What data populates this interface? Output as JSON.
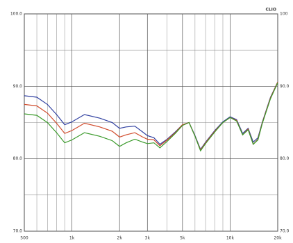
{
  "chart_data": {
    "type": "line",
    "label": "CLIO",
    "log_x": true,
    "grid": true,
    "x": [
      500,
      600,
      700,
      800,
      900,
      1000,
      1200,
      1500,
      1800,
      2000,
      2200,
      2500,
      2800,
      3000,
      3300,
      3600,
      4000,
      4500,
      5000,
      5500,
      6000,
      6500,
      7000,
      8000,
      9000,
      10000,
      11000,
      12000,
      13000,
      14000,
      15000,
      16000,
      18000,
      20000
    ],
    "series": [
      {
        "color": "#2f3fa0",
        "values": [
          88.7,
          88.5,
          87.5,
          86.1,
          84.7,
          85.1,
          86.1,
          85.6,
          85.0,
          84.2,
          84.4,
          84.5,
          83.7,
          83.2,
          82.9,
          82.0,
          82.7,
          83.7,
          84.7,
          85.0,
          83.2,
          81.3,
          82.3,
          83.9,
          85.1,
          85.8,
          85.4,
          83.5,
          84.2,
          82.3,
          82.9,
          85.1,
          88.5,
          90.6
        ]
      },
      {
        "color": "#d04a2a",
        "values": [
          87.5,
          87.3,
          86.3,
          84.9,
          83.5,
          83.9,
          84.9,
          84.4,
          83.8,
          83.0,
          83.3,
          83.6,
          83.0,
          82.7,
          82.6,
          81.8,
          82.6,
          83.6,
          84.7,
          85.0,
          83.1,
          81.2,
          82.2,
          83.8,
          85.0,
          85.7,
          85.3,
          83.3,
          84.1,
          82.0,
          82.7,
          85.0,
          88.4,
          90.6
        ]
      },
      {
        "color": "#3a9a2a",
        "values": [
          86.2,
          86.0,
          85.0,
          83.6,
          82.2,
          82.6,
          83.6,
          83.1,
          82.5,
          81.7,
          82.2,
          82.7,
          82.3,
          82.1,
          82.2,
          81.5,
          82.4,
          83.5,
          84.6,
          85.0,
          83.1,
          81.1,
          82.1,
          83.7,
          85.0,
          85.7,
          85.2,
          83.3,
          84.0,
          82.0,
          82.6,
          84.9,
          88.3,
          90.5
        ]
      }
    ],
    "xlim": [
      500,
      20000
    ],
    "xticks": [
      {
        "value": 500,
        "label": "500"
      },
      {
        "value": 1000,
        "label": "1k"
      },
      {
        "value": 2000,
        "label": "2k"
      },
      {
        "value": 3000,
        "label": "3k"
      },
      {
        "value": 5000,
        "label": "5k"
      },
      {
        "value": 10000,
        "label": "10k"
      },
      {
        "value": 20000,
        "label": "20k"
      }
    ],
    "x_minor_grid": [
      600,
      700,
      800,
      900,
      4000,
      6000,
      7000,
      8000,
      9000
    ],
    "ylim": [
      70,
      100
    ],
    "yticks": [
      {
        "value": 70,
        "label": "70.0"
      },
      {
        "value": 80,
        "label": "80.0"
      },
      {
        "value": 90,
        "label": "90.0"
      },
      {
        "value": 100,
        "label": "100.0"
      }
    ],
    "y_minor_grid": [
      75,
      85,
      95
    ],
    "y2lim": [
      70,
      100
    ],
    "y2ticks": [
      {
        "value": 70,
        "label": "70.0"
      },
      {
        "value": 80,
        "label": "80.0"
      },
      {
        "value": 90,
        "label": "90.0"
      },
      {
        "value": 100,
        "label": "100"
      }
    ]
  }
}
